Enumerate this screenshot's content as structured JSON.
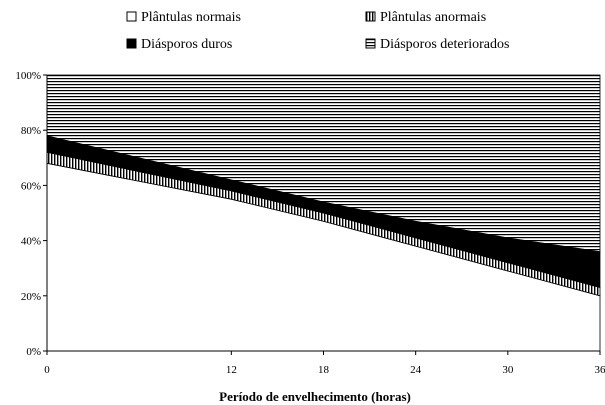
{
  "chart_data": {
    "type": "area",
    "stacked": true,
    "percent": true,
    "title": "",
    "xlabel": "Período de envelhecimento (horas)",
    "ylabel": "",
    "x": [
      0,
      12,
      18,
      24,
      30,
      36
    ],
    "x_tick_labels": [
      "0",
      "12",
      "18",
      "24",
      "30",
      "36"
    ],
    "ylim": [
      0,
      100
    ],
    "y_tick_labels": [
      "0%",
      "20%",
      "40%",
      "60%",
      "80%",
      "100%"
    ],
    "grid": false,
    "legend_position": "top",
    "series": [
      {
        "name": "Plântulas normais",
        "values": [
          68,
          55,
          47,
          38,
          29,
          20
        ],
        "fill": "white"
      },
      {
        "name": "Plântulas anormais",
        "values": [
          4,
          3,
          3,
          3,
          3,
          3
        ],
        "fill": "vertical-stripes"
      },
      {
        "name": "Diásporos duros",
        "values": [
          6,
          4,
          4,
          6,
          9,
          13
        ],
        "fill": "black"
      },
      {
        "name": "Diásporos deteriorados",
        "values": [
          22,
          38,
          46,
          53,
          59,
          64
        ],
        "fill": "horizontal-stripes"
      }
    ]
  }
}
